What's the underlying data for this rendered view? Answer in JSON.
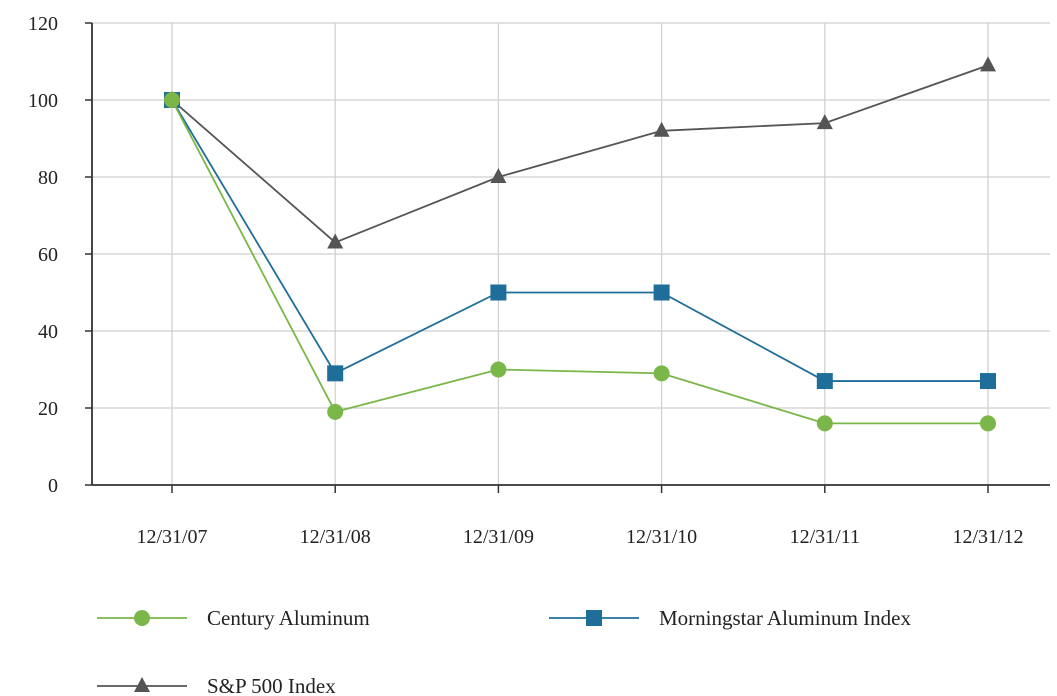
{
  "chart_data": {
    "type": "line",
    "categories": [
      "12/31/07",
      "12/31/08",
      "12/31/09",
      "12/31/10",
      "12/31/11",
      "12/31/12"
    ],
    "ylim": [
      0,
      120
    ],
    "yticks": [
      "0",
      "20",
      "40",
      "60",
      "80",
      "100",
      "120"
    ],
    "grid": true,
    "legend_placement": "bottom",
    "series": [
      {
        "name": "Century Aluminum",
        "values": [
          100,
          19,
          30,
          29,
          16,
          16
        ],
        "color": "#7ab648",
        "marker": "circle"
      },
      {
        "name": "Morningstar Aluminum Index",
        "values": [
          100,
          29,
          50,
          50,
          27,
          27
        ],
        "color": "#1f6e99",
        "marker": "square"
      },
      {
        "name": "S&P 500 Index",
        "values": [
          100,
          63,
          80,
          92,
          94,
          109
        ],
        "color": "#555555",
        "marker": "triangle"
      }
    ]
  }
}
